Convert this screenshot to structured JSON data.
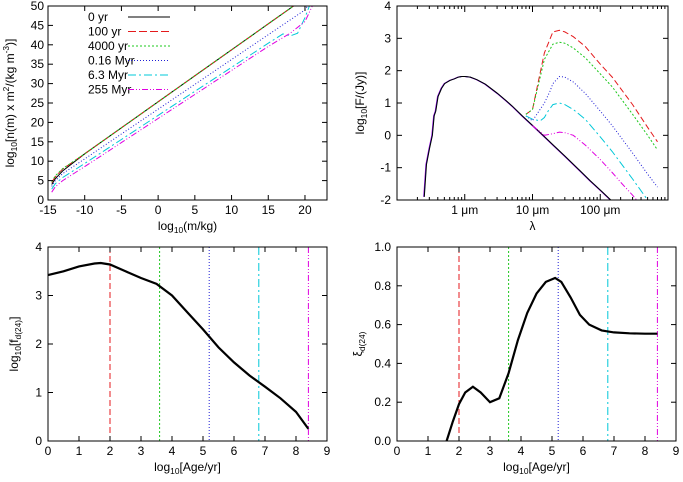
{
  "figure": {
    "panels": [
      "mass-distribution",
      "sed",
      "f24-vs-age",
      "xi24-vs-age"
    ]
  },
  "chart_data": [
    {
      "id": "mass-distribution",
      "type": "line",
      "xlabel": "log10(m/kg)",
      "ylabel": "log10[n(m) x m^2/(kg m^-3)]",
      "xlim": [
        -15,
        23
      ],
      "ylim": [
        0,
        50
      ],
      "xticks": [
        -15,
        -10,
        -5,
        0,
        5,
        10,
        15,
        20
      ],
      "yticks": [
        0,
        5,
        10,
        15,
        20,
        25,
        30,
        35,
        40,
        45,
        50
      ],
      "legend_position": "top-left",
      "series": [
        {
          "name": "0 yr",
          "color": "#000000",
          "dash": "solid",
          "x": [
            -14.5,
            -14,
            -13,
            -10,
            -5,
            0,
            5,
            10,
            15,
            20,
            22
          ],
          "y": [
            4.0,
            5.5,
            7.5,
            11.9,
            18.6,
            25.3,
            32.0,
            38.7,
            45.4,
            52.1,
            54.8
          ]
        },
        {
          "name": "100 yr",
          "color": "#e41a1c",
          "dash": "8,3",
          "x": [
            -14.5,
            -14,
            -13,
            -10,
            -5,
            0,
            5,
            10,
            15,
            20,
            22
          ],
          "y": [
            4.5,
            6.0,
            8.0,
            11.9,
            18.6,
            25.3,
            32.0,
            38.7,
            45.4,
            52.1,
            54.8
          ]
        },
        {
          "name": "4000 yr",
          "color": "#1ec81e",
          "dash": "2,2",
          "x": [
            -14.5,
            -14,
            -13,
            -10,
            -5,
            0,
            5,
            10,
            15,
            20,
            22
          ],
          "y": [
            4.7,
            6.2,
            8.1,
            11.9,
            18.6,
            25.3,
            32.0,
            38.7,
            45.4,
            52.1,
            54.8
          ]
        },
        {
          "name": "0.16 Myr",
          "color": "#1f1fd6",
          "dash": "1,2",
          "x": [
            -14.5,
            -14,
            -13,
            -10,
            -5,
            0,
            5,
            10,
            15,
            20,
            22
          ],
          "y": [
            3.5,
            5.0,
            6.8,
            10.6,
            17.0,
            23.4,
            29.8,
            36.2,
            42.6,
            49.0,
            54.8
          ]
        },
        {
          "name": "6.3 Myr",
          "color": "#00c8d8",
          "dash": "8,3,2,3",
          "x": [
            -14.5,
            -14,
            -13,
            -10,
            -5,
            0,
            5,
            10,
            15,
            17,
            18,
            19,
            20,
            21,
            22
          ],
          "y": [
            2.8,
            4.2,
            5.8,
            9.4,
            15.6,
            21.8,
            28.0,
            34.2,
            40.4,
            42.8,
            42.3,
            43.0,
            47.0,
            52.0,
            54.8
          ]
        },
        {
          "name": "255 Myr",
          "color": "#e000e0",
          "dash": "6,2,1,2,1,2",
          "x": [
            -14.5,
            -14,
            -13,
            -10,
            -5,
            0,
            5,
            10,
            15,
            18,
            20,
            21,
            22
          ],
          "y": [
            2.0,
            3.4,
            5.0,
            8.6,
            14.8,
            21.0,
            27.2,
            33.4,
            39.6,
            43.0,
            46.0,
            50.0,
            54.8
          ]
        }
      ]
    },
    {
      "id": "sed",
      "type": "line",
      "xlabel": "λ",
      "ylabel": "log10[F/(Jy)]",
      "xscale": "log",
      "xlim_um": [
        0.1,
        1000
      ],
      "ylim": [
        -2,
        4
      ],
      "xtick_labels": [
        "1 μm",
        "10 μm",
        "100 μm"
      ],
      "xtick_values_um": [
        1,
        10,
        100
      ],
      "yticks": [
        -2,
        -1,
        0,
        1,
        2,
        3,
        4
      ],
      "photosphere_um": [
        0.25,
        0.27,
        0.3,
        0.33,
        0.35,
        0.37,
        0.4,
        0.45,
        0.5,
        0.6,
        0.7,
        0.8,
        0.9,
        1.0,
        1.2,
        1.5,
        2,
        3,
        4,
        5,
        7,
        10,
        15,
        20,
        30,
        50,
        70,
        100,
        150,
        200
      ],
      "photosphere_y": [
        -1.9,
        -0.9,
        -0.4,
        0.0,
        0.6,
        0.75,
        1.2,
        1.45,
        1.6,
        1.7,
        1.75,
        1.8,
        1.82,
        1.82,
        1.8,
        1.72,
        1.58,
        1.3,
        1.08,
        0.9,
        0.6,
        0.3,
        -0.05,
        -0.3,
        -0.65,
        -1.1,
        -1.4,
        -1.7,
        -2.05,
        -2.3
      ],
      "series": [
        {
          "name": "0 yr",
          "color": "#000000",
          "dash": "solid",
          "x_um": [],
          "y": []
        },
        {
          "name": "100 yr",
          "color": "#e41a1c",
          "dash": "6,3",
          "x_um": [
            8,
            10,
            12,
            15,
            20,
            25,
            30,
            40,
            60,
            100,
            150,
            200,
            300,
            500,
            700
          ],
          "y": [
            0.65,
            0.8,
            1.6,
            2.55,
            3.2,
            3.25,
            3.2,
            3.05,
            2.75,
            2.2,
            1.8,
            1.45,
            0.95,
            0.25,
            -0.2
          ]
        },
        {
          "name": "4000 yr",
          "color": "#1ec81e",
          "dash": "2,2",
          "x_um": [
            8,
            10,
            12,
            15,
            20,
            25,
            30,
            40,
            60,
            100,
            150,
            200,
            300,
            500,
            700
          ],
          "y": [
            0.65,
            0.8,
            1.5,
            2.35,
            2.82,
            2.88,
            2.85,
            2.7,
            2.4,
            1.9,
            1.5,
            1.15,
            0.65,
            0.0,
            -0.45
          ]
        },
        {
          "name": "0.16 Myr",
          "color": "#1f1fd6",
          "dash": "1,2",
          "x_um": [
            8,
            10,
            12,
            15,
            18,
            20,
            25,
            30,
            40,
            60,
            100,
            150,
            200,
            300,
            500,
            700
          ],
          "y": [
            0.6,
            0.45,
            0.7,
            1.0,
            1.35,
            1.6,
            1.82,
            1.8,
            1.65,
            1.3,
            0.75,
            0.3,
            -0.05,
            -0.55,
            -1.2,
            -1.6
          ]
        },
        {
          "name": "6.3 Myr",
          "color": "#00c8d8",
          "dash": "8,3,2,3",
          "x_um": [
            8,
            10,
            13,
            15,
            17,
            20,
            25,
            30,
            40,
            60,
            100,
            150,
            200,
            300,
            500,
            700
          ],
          "y": [
            0.6,
            0.5,
            0.45,
            0.55,
            0.75,
            0.95,
            1.0,
            0.95,
            0.8,
            0.5,
            -0.05,
            -0.5,
            -0.85,
            -1.35,
            -2.0,
            -2.4
          ]
        },
        {
          "name": "255 Myr",
          "color": "#e000e0",
          "dash": "6,2,1,2,1,2",
          "x_um": [
            10,
            15,
            20,
            25,
            30,
            40,
            60,
            100,
            150,
            200,
            300,
            500,
            700
          ],
          "y": [
            0.3,
            0.0,
            0.05,
            0.1,
            0.08,
            0.0,
            -0.3,
            -0.75,
            -1.15,
            -1.45,
            -1.85,
            -2.4,
            -2.8
          ]
        }
      ]
    },
    {
      "id": "f24-vs-age",
      "type": "line",
      "xlabel": "log10[Age/yr]",
      "ylabel": "log10[fd(24)]",
      "xlim": [
        0,
        9
      ],
      "ylim": [
        0,
        4
      ],
      "xticks": [
        0,
        1,
        2,
        3,
        4,
        5,
        6,
        7,
        8,
        9
      ],
      "yticks": [
        0,
        1,
        2,
        3,
        4
      ],
      "curve": {
        "x": [
          0,
          0.5,
          1.0,
          1.5,
          1.7,
          2.0,
          2.5,
          3.0,
          3.5,
          4.0,
          4.5,
          5.0,
          5.5,
          6.0,
          6.5,
          7.0,
          7.5,
          8.0,
          8.4
        ],
        "y": [
          3.42,
          3.5,
          3.6,
          3.66,
          3.67,
          3.64,
          3.5,
          3.36,
          3.24,
          3.0,
          2.65,
          2.3,
          1.93,
          1.62,
          1.35,
          1.12,
          0.88,
          0.6,
          0.25
        ]
      },
      "markers": [
        {
          "age": 2.0,
          "color": "#e41a1c",
          "dash": "6,3"
        },
        {
          "age": 3.6,
          "color": "#1ec81e",
          "dash": "2,2"
        },
        {
          "age": 5.2,
          "color": "#1f1fd6",
          "dash": "1,2"
        },
        {
          "age": 6.8,
          "color": "#00c8d8",
          "dash": "8,3,2,3"
        },
        {
          "age": 8.4,
          "color": "#e000e0",
          "dash": "6,2,1,2,1,2"
        }
      ]
    },
    {
      "id": "xi24-vs-age",
      "type": "line",
      "xlabel": "log10[Age/yr]",
      "ylabel": "ξd(24)",
      "xlim": [
        0,
        9
      ],
      "ylim": [
        0,
        1.0
      ],
      "xticks": [
        0,
        1,
        2,
        3,
        4,
        5,
        6,
        7,
        8,
        9
      ],
      "yticks": [
        0,
        0.2,
        0.4,
        0.6,
        0.8,
        1.0
      ],
      "ytick_labels": [
        "0.0",
        "0.2",
        "0.4",
        "0.6",
        "0.8",
        "1.0"
      ],
      "curve": {
        "x": [
          1.6,
          1.8,
          2.0,
          2.2,
          2.45,
          2.7,
          3.0,
          3.3,
          3.6,
          3.9,
          4.2,
          4.5,
          4.8,
          5.1,
          5.3,
          5.6,
          5.9,
          6.2,
          6.6,
          7.0,
          7.5,
          8.0,
          8.4
        ],
        "y": [
          0.0,
          0.1,
          0.19,
          0.25,
          0.28,
          0.25,
          0.2,
          0.22,
          0.35,
          0.52,
          0.66,
          0.76,
          0.82,
          0.84,
          0.82,
          0.74,
          0.65,
          0.6,
          0.57,
          0.56,
          0.555,
          0.553,
          0.553
        ]
      },
      "markers": [
        {
          "age": 2.0,
          "color": "#e41a1c",
          "dash": "6,3"
        },
        {
          "age": 3.6,
          "color": "#1ec81e",
          "dash": "2,2"
        },
        {
          "age": 5.2,
          "color": "#1f1fd6",
          "dash": "1,2"
        },
        {
          "age": 6.8,
          "color": "#00c8d8",
          "dash": "8,3,2,3"
        },
        {
          "age": 8.4,
          "color": "#e000e0",
          "dash": "6,2,1,2,1,2"
        }
      ]
    }
  ]
}
